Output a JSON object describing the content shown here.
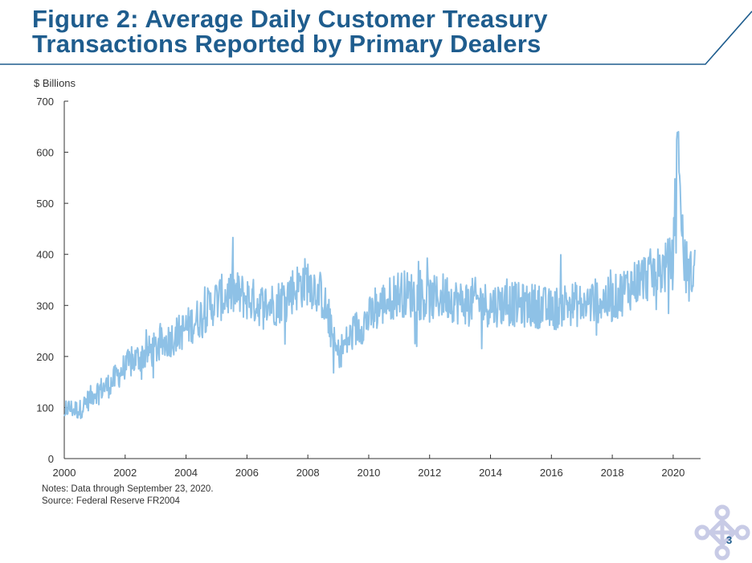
{
  "header": {
    "title_line1": "Figure 2: Average Daily Customer Treasury",
    "title_line2": "Transactions Reported by Primary Dealers"
  },
  "chart_data": {
    "type": "line",
    "title": "Figure 2: Average Daily Customer Treasury Transactions Reported by Primary Dealers",
    "ylabel": "$ Billions",
    "xlabel": "",
    "ylim": [
      0,
      700
    ],
    "xlim": [
      2000,
      2020.9
    ],
    "yticks": [
      "0",
      "100",
      "200",
      "300",
      "400",
      "500",
      "600",
      "700"
    ],
    "xticks": [
      "2000",
      "2002",
      "2004",
      "2006",
      "2008",
      "2010",
      "2012",
      "2014",
      "2016",
      "2018",
      "2020"
    ],
    "grid": false,
    "color": "#8ec1e6",
    "series": [
      {
        "name": "",
        "x": [
          2000.0,
          2000.5,
          2001.0,
          2001.5,
          2002.0,
          2002.5,
          2003.0,
          2003.5,
          2004.0,
          2004.5,
          2005.0,
          2005.5,
          2006.0,
          2006.5,
          2007.0,
          2007.5,
          2008.0,
          2008.5,
          2008.9,
          2009.0,
          2009.3,
          2009.6,
          2010.0,
          2010.5,
          2011.0,
          2011.5,
          2012.0,
          2012.5,
          2013.0,
          2013.5,
          2014.0,
          2014.5,
          2015.0,
          2015.5,
          2016.0,
          2016.5,
          2017.0,
          2017.5,
          2018.0,
          2018.5,
          2019.0,
          2019.5,
          2020.0,
          2020.15,
          2020.25,
          2020.4,
          2020.55,
          2020.72
        ],
        "values": [
          100,
          95,
          130,
          145,
          180,
          200,
          215,
          235,
          255,
          280,
          310,
          325,
          315,
          300,
          305,
          330,
          350,
          315,
          215,
          205,
          230,
          255,
          275,
          305,
          325,
          320,
          310,
          320,
          305,
          310,
          300,
          305,
          300,
          300,
          290,
          305,
          300,
          310,
          310,
          335,
          355,
          365,
          385,
          650,
          465,
          370,
          355,
          380
        ],
        "peak_labels": []
      }
    ]
  },
  "notes": {
    "line1": "Notes: Data through September 23, 2020.",
    "line2": "Source: Federal Reserve FR2004"
  },
  "page_number": "3"
}
